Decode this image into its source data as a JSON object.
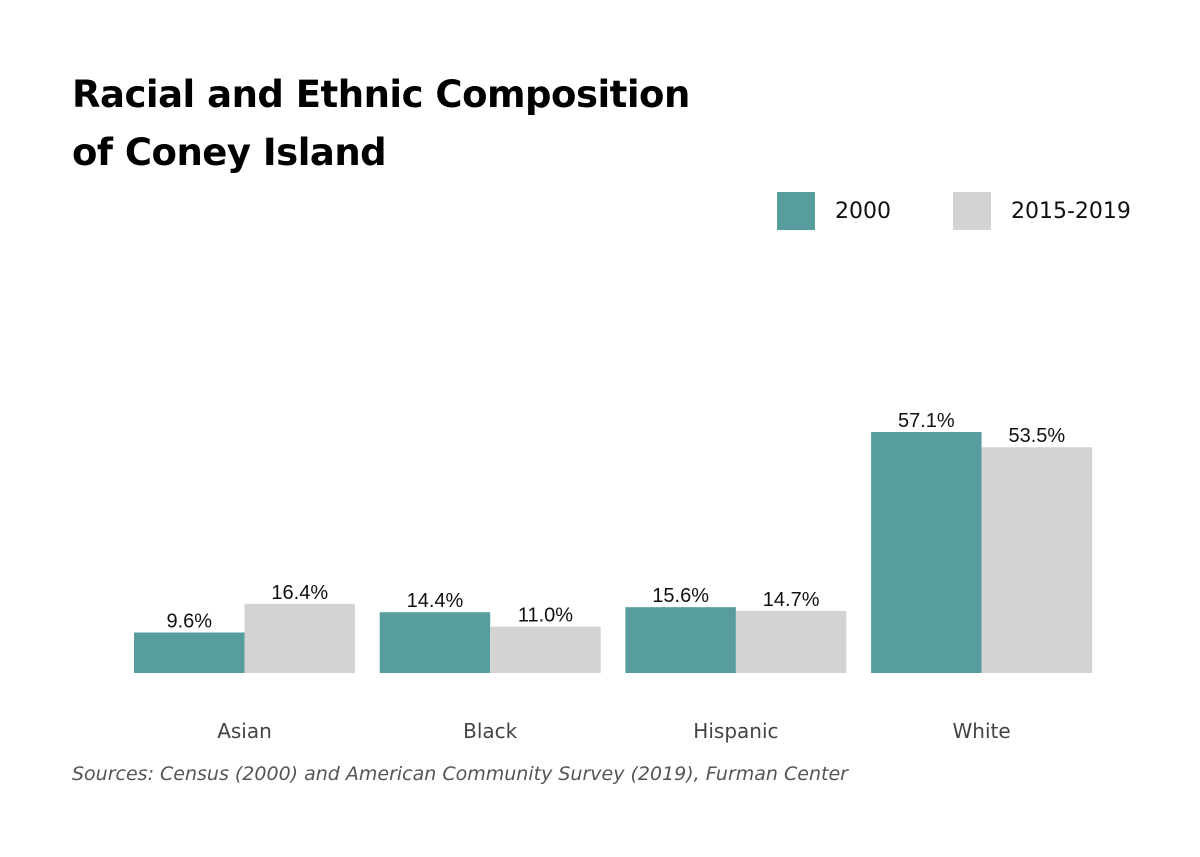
{
  "chart_data": {
    "type": "bar",
    "title": "Racial and Ethnic Composition of Coney Island",
    "title_lines": [
      "Racial and Ethnic Composition",
      "of Coney Island"
    ],
    "categories": [
      "Asian",
      "Black",
      "Hispanic",
      "White"
    ],
    "series": [
      {
        "name": "2000",
        "color": "#579d9e",
        "values": [
          9.6,
          14.4,
          15.6,
          57.1
        ],
        "labels": [
          "9.6%",
          "14.4%",
          "15.6%",
          "57.1%"
        ]
      },
      {
        "name": "2015-2019",
        "color": "#d3d3d3",
        "values": [
          16.4,
          11.0,
          14.7,
          53.5
        ],
        "labels": [
          "16.4%",
          "11.0%",
          "14.7%",
          "53.5%"
        ]
      }
    ],
    "xlabel": "",
    "ylabel": "",
    "ylim": [
      0,
      60
    ],
    "grid": false,
    "legend_position": "top-right",
    "source": "Sources: Census (2000) and American Community Survey (2019), Furman Center"
  }
}
